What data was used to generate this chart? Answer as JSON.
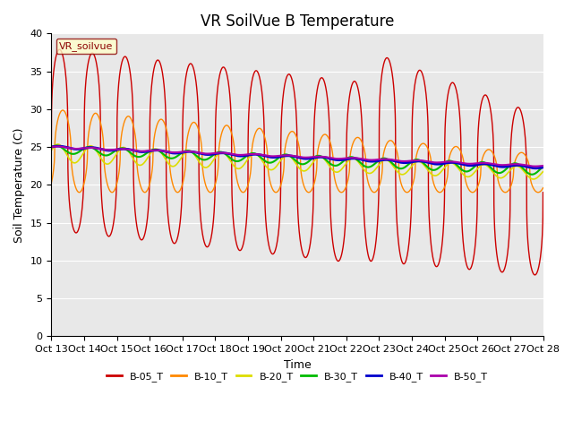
{
  "title": "VR SoilVue B Temperature",
  "xlabel": "Time",
  "ylabel": "Soil Temperature (C)",
  "xlim": [
    0,
    15
  ],
  "ylim": [
    0,
    40
  ],
  "yticks": [
    0,
    5,
    10,
    15,
    20,
    25,
    30,
    35,
    40
  ],
  "xtick_labels": [
    "Oct 13",
    "Oct 14",
    "Oct 15",
    "Oct 16",
    "Oct 17",
    "Oct 18",
    "Oct 19",
    "Oct 20",
    "Oct 21",
    "Oct 22",
    "Oct 23",
    "Oct 24",
    "Oct 25",
    "Oct 26",
    "Oct 27",
    "Oct 28"
  ],
  "legend_label": "VR_soilvue",
  "series_colors": {
    "B-05_T": "#cc0000",
    "B-10_T": "#ff8800",
    "B-20_T": "#dddd00",
    "B-30_T": "#00bb00",
    "B-40_T": "#0000cc",
    "B-50_T": "#aa00aa"
  },
  "legend_entries": [
    "B-05_T",
    "B-10_T",
    "B-20_T",
    "B-30_T",
    "B-40_T",
    "B-50_T"
  ],
  "background_color": "#e8e8e8",
  "title_fontsize": 12,
  "axis_fontsize": 9,
  "tick_fontsize": 8
}
